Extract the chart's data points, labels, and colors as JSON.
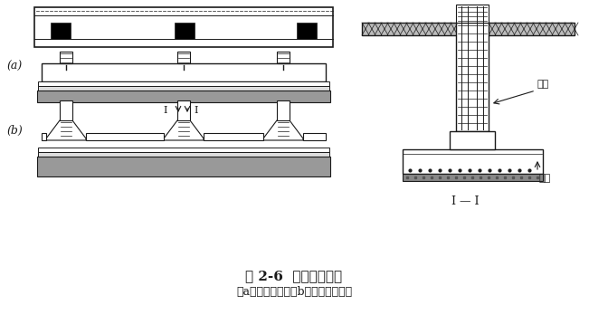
{
  "title1": "图 2-6  柱下条形基础",
  "title2": "（a）等截面的；（b）柱位处加腋的",
  "label_a": "(a)",
  "label_b": "(b)",
  "label_I_I": "I — I",
  "label_jizhu": "肋梁",
  "label_yi": "翼板",
  "bg_color": "#ffffff",
  "line_color": "#1a1a1a"
}
